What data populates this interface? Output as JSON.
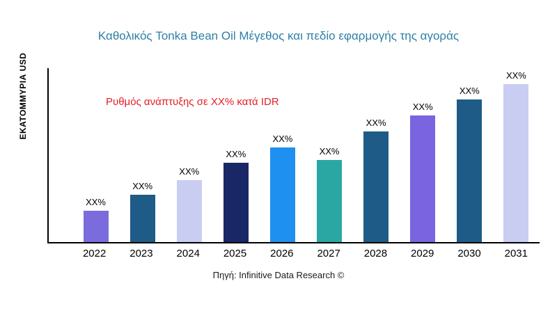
{
  "colors": {
    "title": "#2e7fa6",
    "annotation": "#e41e26"
  },
  "chart_data": {
    "type": "bar",
    "title": "Καθολικός Tonka Bean Oil Μέγεθος και πεδίο εφαρμογής της αγοράς",
    "ylabel": "ΕΚΑΤΟΜΜΥΡΙΑ USD",
    "annotation": "Ρυθμός ανάπτυξης σε XX% κατά IDR",
    "source": "Πηγή: Infinitive Data Research ©",
    "categories": [
      "2022",
      "2023",
      "2024",
      "2025",
      "2026",
      "2027",
      "2028",
      "2029",
      "2030",
      "2031"
    ],
    "values": [
      20,
      30,
      39,
      50,
      60,
      52,
      70,
      80,
      90,
      100
    ],
    "value_labels": [
      "XX%",
      "XX%",
      "XX%",
      "XX%",
      "XX%",
      "XX%",
      "XX%",
      "XX%",
      "XX%",
      "XX%"
    ],
    "bar_colors": [
      "#7a6cdd",
      "#1e5b86",
      "#c9cdf1",
      "#1a2766",
      "#1e90f0",
      "#2aa7a3",
      "#1e5b86",
      "#7a64e0",
      "#1e5b86",
      "#c9cdf1"
    ],
    "ylim": [
      0,
      110
    ],
    "xlabel": "",
    "grid": false,
    "legend": "none"
  }
}
